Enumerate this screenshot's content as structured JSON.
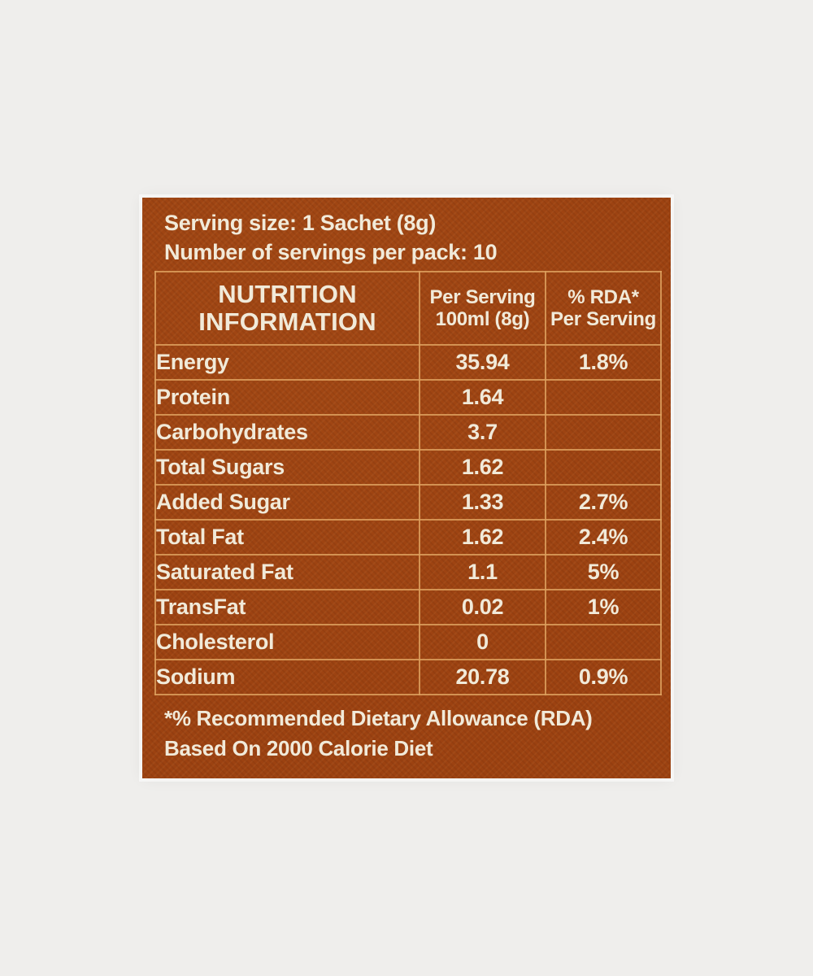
{
  "page": {
    "background_color": "#efeeec"
  },
  "label": {
    "background_color": "#9c4211",
    "text_color": "#f1ead9",
    "border_color": "#dda05e",
    "serving_size": "Serving size: 1 Sachet (8g)",
    "servings_per_pack": "Number of servings per pack: 10",
    "table": {
      "header": {
        "col1_line1": "NUTRITION",
        "col1_line2": "INFORMATION",
        "col2_line1": "Per Serving",
        "col2_line2": "100ml (8g)",
        "col3_line1": "% RDA*",
        "col3_line2": "Per Serving"
      },
      "rows": [
        {
          "nutrient": "Energy",
          "per_serving": "35.94",
          "rda": "1.8%"
        },
        {
          "nutrient": "Protein",
          "per_serving": "1.64",
          "rda": ""
        },
        {
          "nutrient": "Carbohydrates",
          "per_serving": "3.7",
          "rda": ""
        },
        {
          "nutrient": "Total Sugars",
          "per_serving": "1.62",
          "rda": ""
        },
        {
          "nutrient": "Added Sugar",
          "per_serving": "1.33",
          "rda": "2.7%"
        },
        {
          "nutrient": "Total Fat",
          "per_serving": "1.62",
          "rda": "2.4%"
        },
        {
          "nutrient": "Saturated Fat",
          "per_serving": "1.1",
          "rda": "5%"
        },
        {
          "nutrient": "TransFat",
          "per_serving": "0.02",
          "rda": "1%"
        },
        {
          "nutrient": "Cholesterol",
          "per_serving": "0",
          "rda": ""
        },
        {
          "nutrient": "Sodium",
          "per_serving": "20.78",
          "rda": "0.9%"
        }
      ]
    },
    "footnote_line1": "*% Recommended Dietary Allowance (RDA)",
    "footnote_line2": "Based On 2000 Calorie Diet"
  }
}
